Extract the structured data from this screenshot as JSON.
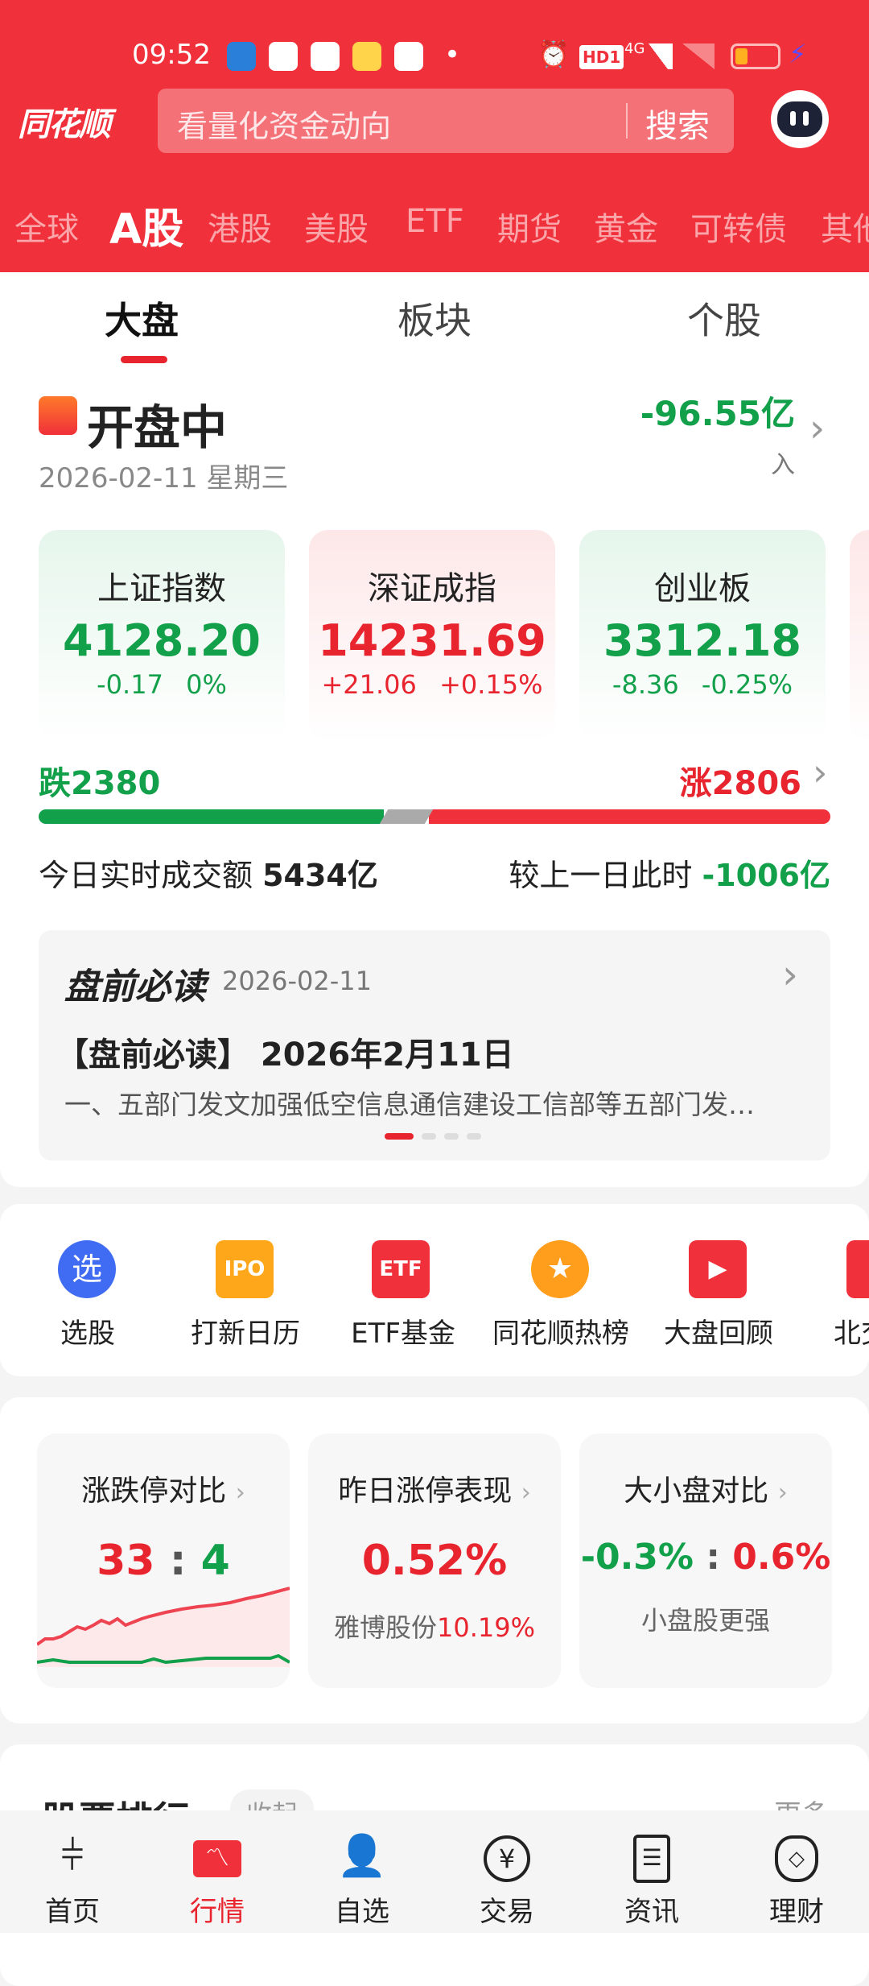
{
  "status_bar": {
    "time": "09:52",
    "icons": [
      "app-dzdp",
      "app-toutiao",
      "app-baidu-map",
      "app-wallet",
      "app-ai-home"
    ],
    "dot": "•",
    "right_icons": [
      "alarm-icon",
      "hd-icon",
      "signal-4g-icon",
      "signal-x-icon",
      "battery-low-icon",
      "charging-icon"
    ],
    "hd": "HD1",
    "net": "4G"
  },
  "header": {
    "logo": "同花顺",
    "search_placeholder": "看量化资金动向",
    "search_button": "搜索",
    "bg": "#f0303a"
  },
  "market_tabs": [
    "全球",
    "A股",
    "港股",
    "美股",
    "ETF",
    "期货",
    "黄金",
    "可转债",
    "其他"
  ],
  "market_tab_active": 1,
  "sub_tabs": [
    "大盘",
    "板块",
    "个股"
  ],
  "sub_tab_active": 0,
  "status": {
    "title": "开盘中",
    "date": "2026-02-11 星期三",
    "flow": "-96.55亿",
    "flow_label": "入"
  },
  "indices": [
    {
      "name": "上证指数",
      "value": "4128.20",
      "change": "-0.17",
      "pct": "0%",
      "trend": "down"
    },
    {
      "name": "深证成指",
      "value": "14231.69",
      "change": "+21.06",
      "pct": "+0.15%",
      "trend": "up"
    },
    {
      "name": "创业板",
      "value": "3312.18",
      "change": "-8.36",
      "pct": "-0.25%",
      "trend": "down"
    }
  ],
  "breadth": {
    "down_label": "跌2380",
    "up_label": "涨2806",
    "down": 2380,
    "up": 2806
  },
  "turnover": {
    "label": "今日实时成交额",
    "value": "5434亿",
    "compare_label": "较上一日此时",
    "compare_value": "-1006亿"
  },
  "premarket": {
    "brand": "盘前必读",
    "date": "2026-02-11",
    "headline": "【盘前必读】 2026年2月11日",
    "summary": "一、五部门发文加强低空信息通信建设工信部等五部门发…",
    "page": 1,
    "pages": 4
  },
  "shortcuts": [
    {
      "label": "选股",
      "icon": "select-stock-icon",
      "glyph": "选"
    },
    {
      "label": "打新日历",
      "icon": "ipo-calendar-icon",
      "glyph": "IPO"
    },
    {
      "label": "ETF基金",
      "icon": "etf-icon",
      "glyph": "ETF"
    },
    {
      "label": "同花顺热榜",
      "icon": "hot-list-icon",
      "glyph": "★"
    },
    {
      "label": "大盘回顾",
      "icon": "market-review-icon",
      "glyph": "▶"
    },
    {
      "label": "北交",
      "icon": "bse-icon",
      "glyph": ""
    }
  ],
  "stats": [
    {
      "title": "涨跌停对比",
      "v1": "33",
      "sep": ":",
      "v2": "4"
    },
    {
      "title": "昨日涨停表现",
      "value": "0.52%",
      "stock": "雅博股份",
      "stock_pct": "10.19%"
    },
    {
      "title": "大小盘对比",
      "v1": "-0.3%",
      "sep": ":",
      "v2": "0.6%",
      "note": "小盘股更强"
    }
  ],
  "ranking": {
    "title": "股票排行",
    "collapse": "收起",
    "more": "更多"
  },
  "chevron": "›",
  "nav": [
    {
      "label": "首页",
      "icon": "home-candles-icon"
    },
    {
      "label": "行情",
      "icon": "quotes-icon"
    },
    {
      "label": "自选",
      "icon": "watchlist-icon"
    },
    {
      "label": "交易",
      "icon": "trade-yen-icon"
    },
    {
      "label": "资讯",
      "icon": "news-icon"
    },
    {
      "label": "理财",
      "icon": "wealth-bag-icon"
    }
  ],
  "nav_active": 1,
  "colors": {
    "red": "#e8242e",
    "green": "#12a04a"
  }
}
